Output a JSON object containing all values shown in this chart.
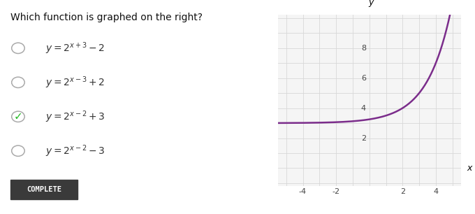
{
  "question": "Which function is graphed on the right?",
  "options": [
    {
      "label": "y = 2^{x+3} - 2",
      "selected": false
    },
    {
      "label": "y = 2^{x-3} + 2",
      "selected": false
    },
    {
      "label": "y = 2^{x-2} + 3",
      "selected": true
    },
    {
      "label": "y = 2^{x-2} - 3",
      "selected": false
    }
  ],
  "button_text": "COMPLETE",
  "graph": {
    "xlim": [
      -5.5,
      5.5
    ],
    "ylim": [
      -1.2,
      10.2
    ],
    "xticks": [
      -4,
      -2,
      2,
      4
    ],
    "yticks": [
      2,
      4,
      6,
      8
    ],
    "curve_color": "#7B2D8B",
    "curve_linewidth": 1.8,
    "grid_color": "#d8d8d8",
    "bg_color": "#f5f5f5",
    "axis_color": "#111111"
  },
  "left_bg": "#ffffff",
  "fig_bg": "#ffffff",
  "question_fontsize": 10,
  "option_fontsize": 10,
  "radio_color": "#aaaaaa",
  "check_color": "#22bb22",
  "text_color": "#333333"
}
